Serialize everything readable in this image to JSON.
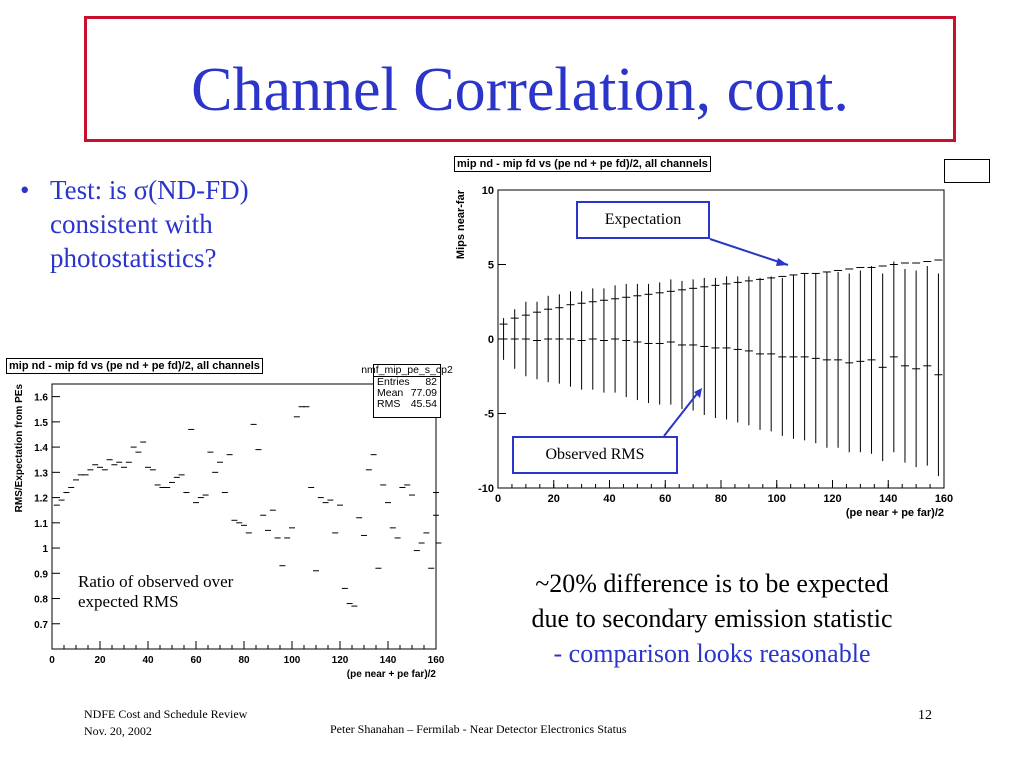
{
  "slide": {
    "title": "Channel Correlation, cont.",
    "bullet": "Test: is σ(ND-FD) consistent with photostatistics?",
    "bullet_marker": "•",
    "conclusion_line1": "~20% difference is to be expected",
    "conclusion_line2": "due to secondary emission statistic",
    "conclusion_line3": "- comparison looks reasonable",
    "footer_left_line1": "NDFE Cost and Schedule Review",
    "footer_left_line2": "Nov. 20, 2002",
    "footer_center": "Peter Shanahan – Fermilab - Near Detector Electronics Status",
    "page_number": "12",
    "colors": {
      "title_blue": "#2b35c9",
      "border_red": "#c8102e"
    }
  },
  "right_plot": {
    "title": "mip nd - mip fd vs (pe nd + pe fd)/2, all channels",
    "annotation_expectation": "Expectation",
    "annotation_observed": "Observed RMS"
  },
  "left_plot": {
    "title": "mip nd - mip fd vs (pe nd + pe fd)/2, all channels",
    "stats_name": "nmf_mip_pe_s_cp2",
    "stats": [
      {
        "label": "Entries",
        "value": "82"
      },
      {
        "label": "Mean",
        "value": "77.09"
      },
      {
        "label": "RMS",
        "value": "45.54"
      }
    ],
    "annotation": "Ratio of observed over expected RMS"
  },
  "chart_data": [
    {
      "type": "scatter",
      "title": "mip nd - mip fd vs (pe nd + pe fd)/2, all channels",
      "xlabel": "(pe near + pe far)/2",
      "ylabel": "Mips near-far",
      "xlim": [
        0,
        160
      ],
      "ylim": [
        -10,
        10
      ],
      "x_ticks": [
        0,
        20,
        40,
        60,
        80,
        100,
        120,
        140,
        160
      ],
      "y_ticks": [
        -10,
        -5,
        0,
        5,
        10
      ],
      "y_tick_labels": [
        "-10",
        "-5",
        "0",
        "5",
        "10"
      ],
      "series": [
        {
          "name": "Observed RMS",
          "x": [
            2,
            6,
            10,
            14,
            18,
            22,
            26,
            30,
            34,
            38,
            42,
            46,
            50,
            54,
            58,
            62,
            66,
            70,
            74,
            78,
            82,
            86,
            90,
            94,
            98,
            102,
            106,
            110,
            114,
            118,
            122,
            126,
            130,
            134,
            138,
            142,
            146,
            150,
            154,
            158
          ],
          "y": [
            0.0,
            0.0,
            0.0,
            -0.1,
            0.0,
            0.0,
            0.0,
            -0.1,
            0.0,
            -0.1,
            0.0,
            -0.1,
            -0.2,
            -0.3,
            -0.3,
            -0.2,
            -0.4,
            -0.4,
            -0.5,
            -0.6,
            -0.6,
            -0.7,
            -0.8,
            -1.0,
            -1.0,
            -1.2,
            -1.2,
            -1.2,
            -1.3,
            -1.4,
            -1.4,
            -1.6,
            -1.5,
            -1.4,
            -1.9,
            -1.2,
            -1.8,
            -2.0,
            -1.8,
            -2.4
          ],
          "err": [
            1.4,
            2.0,
            2.5,
            2.6,
            2.9,
            3.0,
            3.2,
            3.3,
            3.4,
            3.5,
            3.6,
            3.8,
            3.9,
            4.0,
            4.1,
            4.2,
            4.3,
            4.4,
            4.6,
            4.7,
            4.8,
            4.9,
            5.0,
            5.1,
            5.2,
            5.3,
            5.5,
            5.6,
            5.7,
            5.9,
            5.9,
            6.0,
            6.1,
            6.3,
            6.3,
            6.4,
            6.5,
            6.6,
            6.7,
            6.8
          ]
        },
        {
          "name": "Expectation",
          "x": [
            2,
            6,
            10,
            14,
            18,
            22,
            26,
            30,
            34,
            38,
            42,
            46,
            50,
            54,
            58,
            62,
            66,
            70,
            74,
            78,
            82,
            86,
            90,
            94,
            98,
            102,
            106,
            110,
            114,
            118,
            122,
            126,
            130,
            134,
            138,
            142,
            146,
            150,
            154,
            158
          ],
          "y": [
            1.0,
            1.4,
            1.6,
            1.8,
            2.0,
            2.1,
            2.3,
            2.4,
            2.5,
            2.6,
            2.7,
            2.8,
            2.9,
            3.0,
            3.1,
            3.2,
            3.3,
            3.4,
            3.5,
            3.6,
            3.7,
            3.8,
            3.9,
            4.0,
            4.1,
            4.2,
            4.3,
            4.4,
            4.4,
            4.5,
            4.6,
            4.7,
            4.8,
            4.8,
            4.9,
            5.0,
            5.1,
            5.1,
            5.2,
            5.3
          ]
        }
      ]
    },
    {
      "type": "scatter",
      "title": "mip nd - mip fd vs (pe nd + pe fd)/2, all channels",
      "xlabel": "(pe near + pe far)/2",
      "ylabel": "RMS/Expectation from PEs",
      "xlim": [
        0,
        160
      ],
      "ylim": [
        0.6,
        1.65
      ],
      "x_ticks": [
        0,
        20,
        40,
        60,
        80,
        100,
        120,
        140,
        160
      ],
      "y_ticks": [
        0.7,
        0.8,
        0.9,
        1,
        1.1,
        1.2,
        1.3,
        1.4,
        1.5,
        1.6
      ],
      "y_tick_labels": [
        "0.7",
        "0.8",
        "0.9",
        "1",
        "1.1",
        "1.2",
        "1.3",
        "1.4",
        "1.5",
        "1.6"
      ],
      "series": [
        {
          "name": "RMS ratio",
          "x": [
            2,
            4,
            6,
            8,
            10,
            12,
            14,
            16,
            18,
            20,
            22,
            24,
            26,
            28,
            30,
            32,
            34,
            36,
            38,
            40,
            42,
            44,
            46,
            48,
            50,
            52,
            54,
            56,
            58,
            60,
            62,
            64,
            66,
            68,
            70,
            72,
            74,
            76,
            78,
            80,
            82,
            84,
            86,
            88,
            90,
            92,
            94,
            96,
            98,
            100,
            102,
            104,
            106,
            108,
            110,
            112,
            114,
            116,
            118,
            120,
            122,
            124,
            126,
            128,
            130,
            132,
            134,
            136,
            138,
            140,
            142,
            144,
            146,
            148,
            150,
            152,
            154,
            156,
            158,
            160,
            160,
            161
          ],
          "y": [
            1.17,
            1.19,
            1.22,
            1.24,
            1.27,
            1.29,
            1.29,
            1.31,
            1.33,
            1.32,
            1.31,
            1.35,
            1.33,
            1.34,
            1.32,
            1.34,
            1.4,
            1.38,
            1.42,
            1.32,
            1.31,
            1.25,
            1.24,
            1.24,
            1.26,
            1.28,
            1.29,
            1.22,
            1.47,
            1.18,
            1.2,
            1.21,
            1.38,
            1.3,
            1.34,
            1.22,
            1.37,
            1.11,
            1.1,
            1.09,
            1.06,
            1.49,
            1.39,
            1.13,
            1.07,
            1.15,
            1.04,
            0.93,
            1.04,
            1.08,
            1.52,
            1.56,
            1.56,
            1.24,
            0.91,
            1.2,
            1.18,
            1.19,
            1.06,
            1.17,
            0.84,
            0.78,
            0.77,
            1.12,
            1.05,
            1.31,
            1.37,
            0.92,
            1.25,
            1.18,
            1.08,
            1.04,
            1.24,
            1.25,
            1.21,
            0.99,
            1.02,
            1.06,
            0.92,
            1.13,
            1.22,
            1.02
          ]
        }
      ]
    }
  ]
}
